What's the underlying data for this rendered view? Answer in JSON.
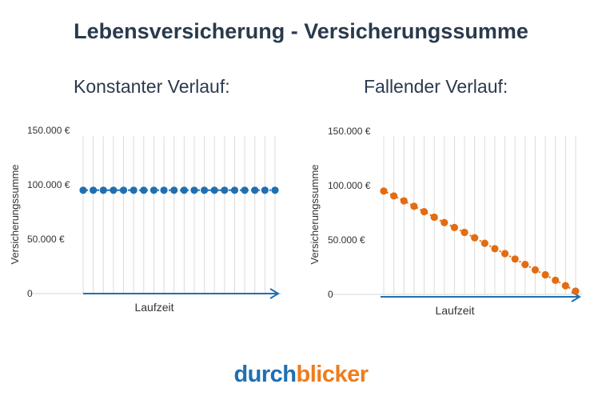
{
  "title": "Lebensversicherung - Versicherungssumme",
  "chart_data": [
    {
      "type": "scatter",
      "title": "Konstanter Verlauf:",
      "xlabel": "Laufzeit",
      "ylabel": "Versicherungssumme",
      "ylim": [
        0,
        150000
      ],
      "yticks": [
        0,
        50000,
        100000,
        150000
      ],
      "ytick_labels": [
        "0",
        "50.000 €",
        "100.000 €",
        "150.000 €"
      ],
      "grid": true,
      "color": "#1f6fb2",
      "x": [
        1,
        2,
        3,
        4,
        5,
        6,
        7,
        8,
        9,
        10,
        11,
        12,
        13,
        14,
        15,
        16,
        17,
        18,
        19,
        20
      ],
      "values": [
        95000,
        95000,
        95000,
        95000,
        95000,
        95000,
        95000,
        95000,
        95000,
        95000,
        95000,
        95000,
        95000,
        95000,
        95000,
        95000,
        95000,
        95000,
        95000,
        95000
      ]
    },
    {
      "type": "scatter",
      "title": "Fallender Verlauf:",
      "xlabel": "Laufzeit",
      "ylabel": "Versicherungssumme",
      "ylim": [
        0,
        150000
      ],
      "yticks": [
        0,
        50000,
        100000,
        150000
      ],
      "ytick_labels": [
        "0",
        "50.000 €",
        "100.000 €",
        "150.000 €"
      ],
      "grid": true,
      "color": "#e36c12",
      "x": [
        1,
        2,
        3,
        4,
        5,
        6,
        7,
        8,
        9,
        10,
        11,
        12,
        13,
        14,
        15,
        16,
        17,
        18,
        19,
        20
      ],
      "values": [
        95000,
        90500,
        86000,
        81000,
        76000,
        71000,
        66000,
        61500,
        57000,
        52000,
        47000,
        42000,
        37500,
        32500,
        27500,
        22500,
        18000,
        13000,
        8000,
        3000
      ]
    }
  ],
  "logo": {
    "part_a": "durch",
    "part_b": "blicker"
  }
}
